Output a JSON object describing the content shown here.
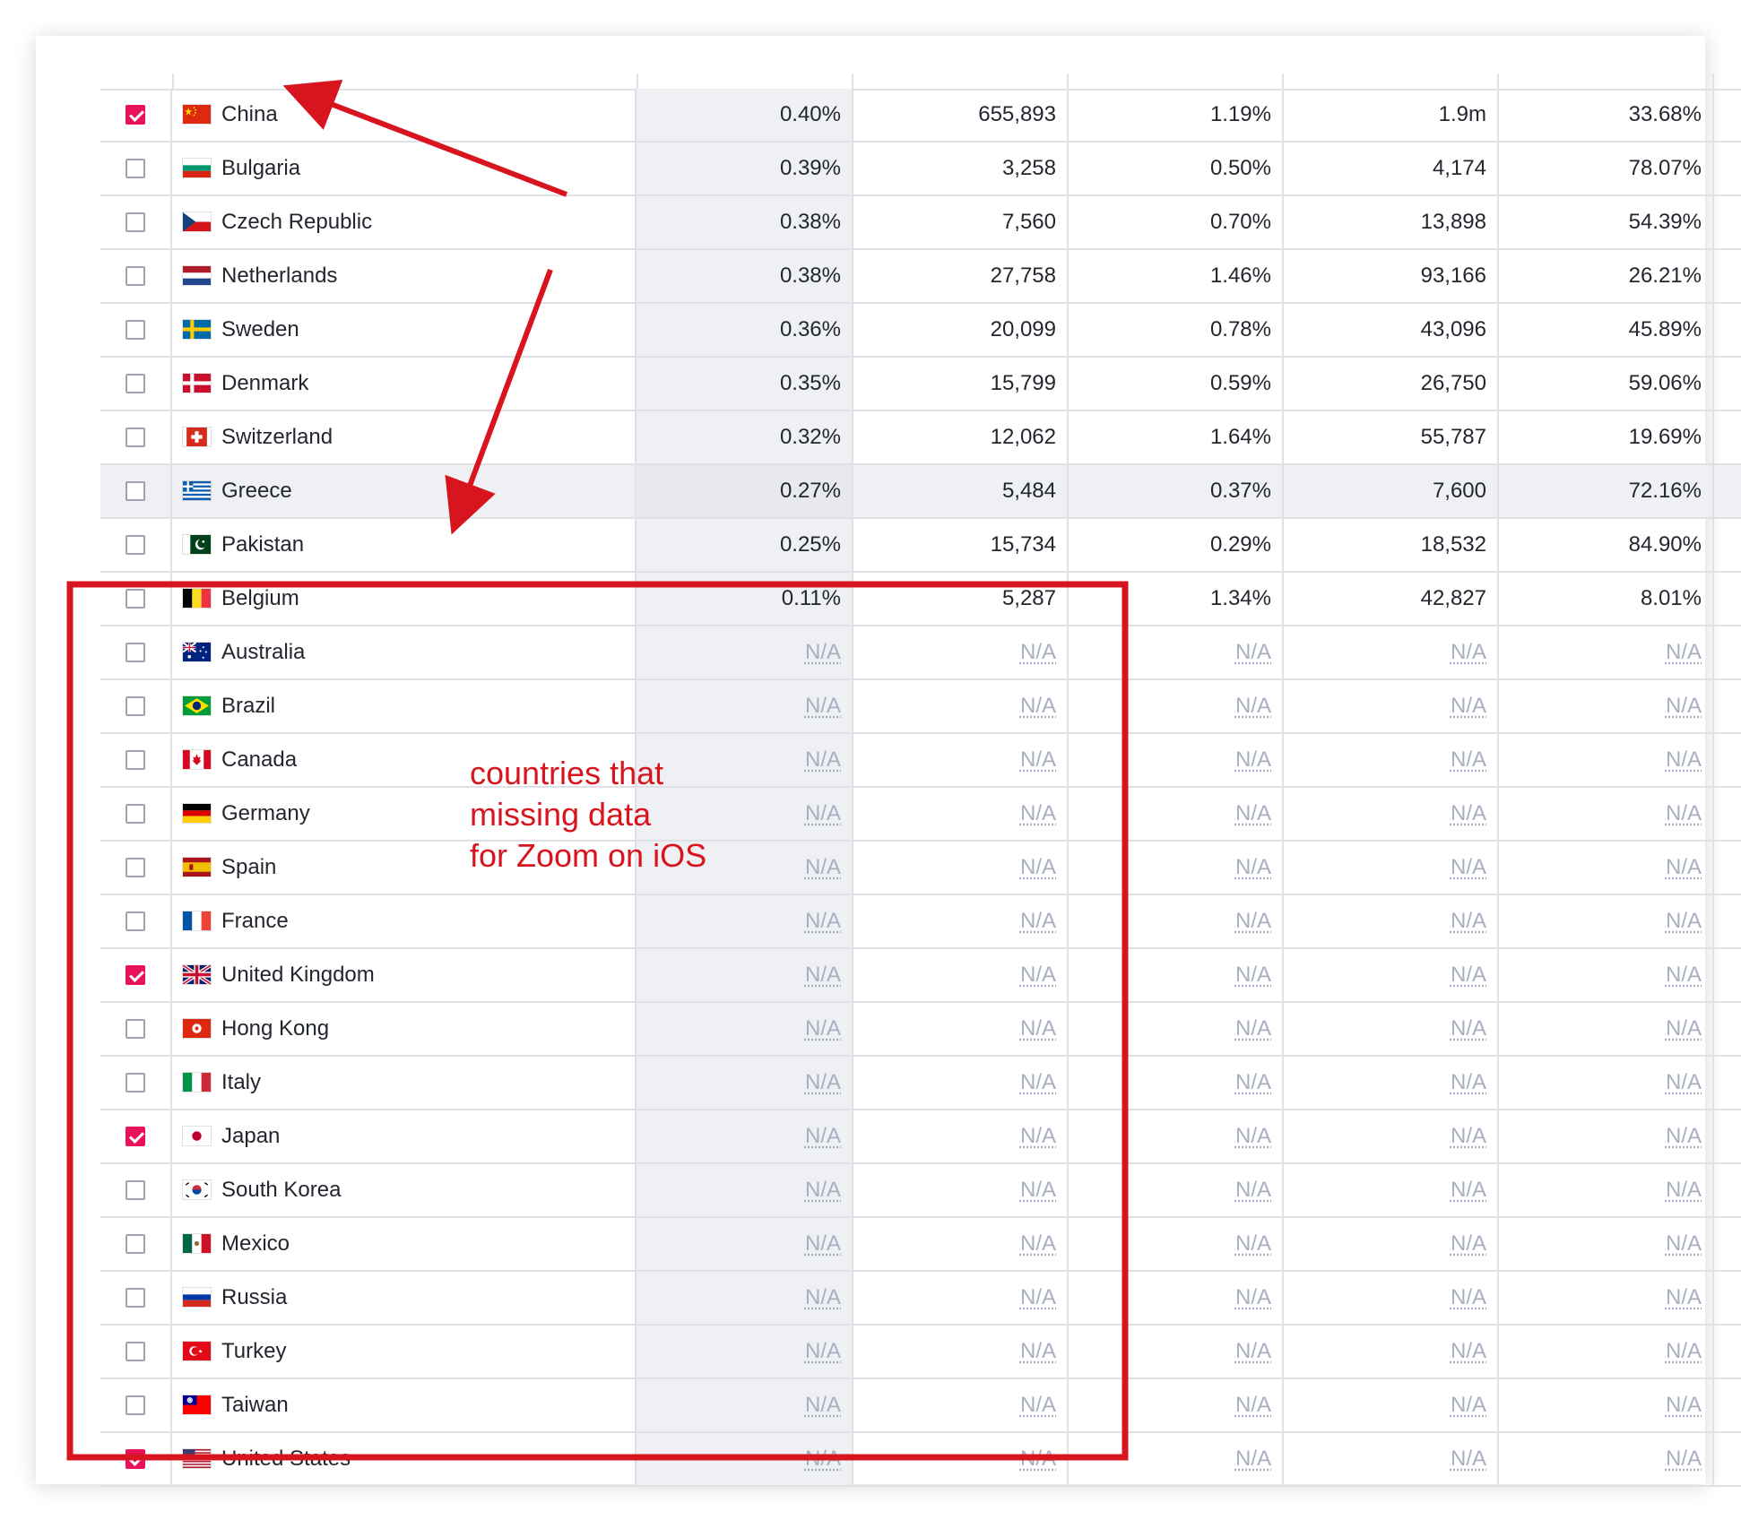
{
  "rows": [
    {
      "checked": true,
      "flag": "china-flag",
      "country": "China",
      "v": [
        "0.40%",
        "655,893",
        "1.19%",
        "1.9m",
        "33.68%"
      ]
    },
    {
      "checked": false,
      "flag": "bulgaria-flag",
      "country": "Bulgaria",
      "v": [
        "0.39%",
        "3,258",
        "0.50%",
        "4,174",
        "78.07%"
      ]
    },
    {
      "checked": false,
      "flag": "czech-republic-flag",
      "country": "Czech Republic",
      "v": [
        "0.38%",
        "7,560",
        "0.70%",
        "13,898",
        "54.39%"
      ]
    },
    {
      "checked": false,
      "flag": "netherlands-flag",
      "country": "Netherlands",
      "v": [
        "0.38%",
        "27,758",
        "1.46%",
        "93,166",
        "26.21%"
      ]
    },
    {
      "checked": false,
      "flag": "sweden-flag",
      "country": "Sweden",
      "v": [
        "0.36%",
        "20,099",
        "0.78%",
        "43,096",
        "45.89%"
      ]
    },
    {
      "checked": false,
      "flag": "denmark-flag",
      "country": "Denmark",
      "v": [
        "0.35%",
        "15,799",
        "0.59%",
        "26,750",
        "59.06%"
      ]
    },
    {
      "checked": false,
      "flag": "switzerland-flag",
      "country": "Switzerland",
      "v": [
        "0.32%",
        "12,062",
        "1.64%",
        "55,787",
        "19.69%"
      ]
    },
    {
      "checked": false,
      "flag": "greece-flag",
      "country": "Greece",
      "v": [
        "0.27%",
        "5,484",
        "0.37%",
        "7,600",
        "72.16%"
      ],
      "hover": true
    },
    {
      "checked": false,
      "flag": "pakistan-flag",
      "country": "Pakistan",
      "v": [
        "0.25%",
        "15,734",
        "0.29%",
        "18,532",
        "84.90%"
      ]
    },
    {
      "checked": false,
      "flag": "belgium-flag",
      "country": "Belgium",
      "v": [
        "0.11%",
        "5,287",
        "1.34%",
        "42,827",
        "8.01%"
      ]
    },
    {
      "checked": false,
      "flag": "australia-flag",
      "country": "Australia",
      "v": [
        "N/A",
        "N/A",
        "N/A",
        "N/A",
        "N/A"
      ]
    },
    {
      "checked": false,
      "flag": "brazil-flag",
      "country": "Brazil",
      "v": [
        "N/A",
        "N/A",
        "N/A",
        "N/A",
        "N/A"
      ]
    },
    {
      "checked": false,
      "flag": "canada-flag",
      "country": "Canada",
      "v": [
        "N/A",
        "N/A",
        "N/A",
        "N/A",
        "N/A"
      ]
    },
    {
      "checked": false,
      "flag": "germany-flag",
      "country": "Germany",
      "v": [
        "N/A",
        "N/A",
        "N/A",
        "N/A",
        "N/A"
      ]
    },
    {
      "checked": false,
      "flag": "spain-flag",
      "country": "Spain",
      "v": [
        "N/A",
        "N/A",
        "N/A",
        "N/A",
        "N/A"
      ]
    },
    {
      "checked": false,
      "flag": "france-flag",
      "country": "France",
      "v": [
        "N/A",
        "N/A",
        "N/A",
        "N/A",
        "N/A"
      ]
    },
    {
      "checked": true,
      "flag": "united-kingdom-flag",
      "country": "United Kingdom",
      "v": [
        "N/A",
        "N/A",
        "N/A",
        "N/A",
        "N/A"
      ]
    },
    {
      "checked": false,
      "flag": "hong-kong-flag",
      "country": "Hong Kong",
      "v": [
        "N/A",
        "N/A",
        "N/A",
        "N/A",
        "N/A"
      ]
    },
    {
      "checked": false,
      "flag": "italy-flag",
      "country": "Italy",
      "v": [
        "N/A",
        "N/A",
        "N/A",
        "N/A",
        "N/A"
      ]
    },
    {
      "checked": true,
      "flag": "japan-flag",
      "country": "Japan",
      "v": [
        "N/A",
        "N/A",
        "N/A",
        "N/A",
        "N/A"
      ]
    },
    {
      "checked": false,
      "flag": "south-korea-flag",
      "country": "South Korea",
      "v": [
        "N/A",
        "N/A",
        "N/A",
        "N/A",
        "N/A"
      ]
    },
    {
      "checked": false,
      "flag": "mexico-flag",
      "country": "Mexico",
      "v": [
        "N/A",
        "N/A",
        "N/A",
        "N/A",
        "N/A"
      ]
    },
    {
      "checked": false,
      "flag": "russia-flag",
      "country": "Russia",
      "v": [
        "N/A",
        "N/A",
        "N/A",
        "N/A",
        "N/A"
      ]
    },
    {
      "checked": false,
      "flag": "turkey-flag",
      "country": "Turkey",
      "v": [
        "N/A",
        "N/A",
        "N/A",
        "N/A",
        "N/A"
      ]
    },
    {
      "checked": false,
      "flag": "taiwan-flag",
      "country": "Taiwan",
      "v": [
        "N/A",
        "N/A",
        "N/A",
        "N/A",
        "N/A"
      ]
    },
    {
      "checked": true,
      "flag": "united-states-flag",
      "country": "United States",
      "v": [
        "N/A",
        "N/A",
        "N/A",
        "N/A",
        "N/A"
      ]
    }
  ],
  "annotation": {
    "lines": [
      "countries that",
      "missing data",
      "for Zoom on iOS"
    ],
    "color": "#d8141e"
  },
  "colors": {
    "checkbox_checked": "#e8125b",
    "na_text": "#a9afc3",
    "shaded_column": "#eef0f4",
    "grid_line": "#dfe1e6"
  }
}
